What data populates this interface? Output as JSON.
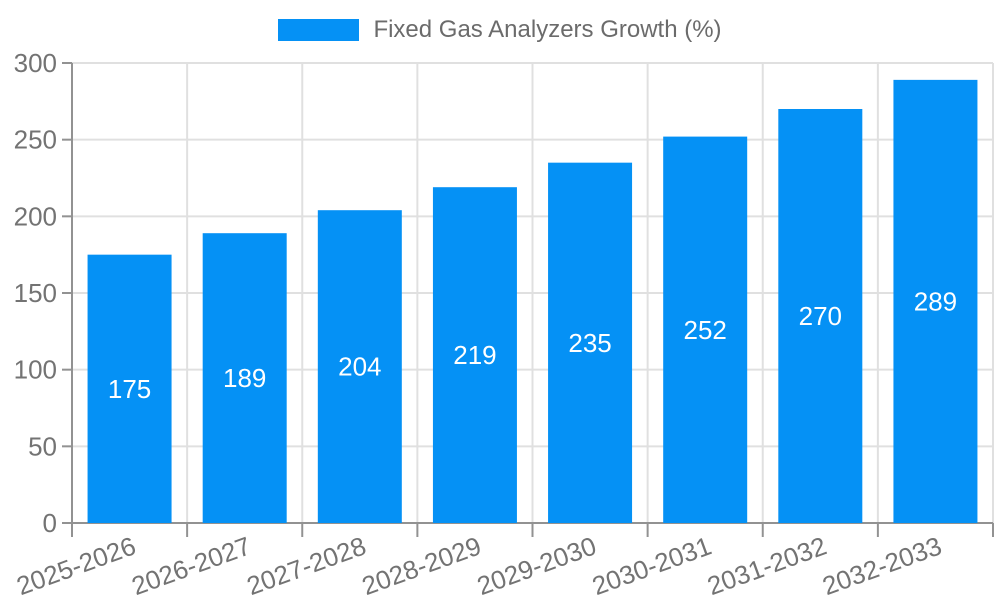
{
  "legend": {
    "label": "Fixed Gas Analyzers Growth (%)"
  },
  "chart_data": {
    "type": "bar",
    "title": "Fixed Gas Analyzers Growth (%)",
    "categories": [
      "2025-2026",
      "2026-2027",
      "2027-2028",
      "2028-2029",
      "2029-2030",
      "2030-2031",
      "2031-2032",
      "2032-2033"
    ],
    "values": [
      175,
      189,
      204,
      219,
      235,
      252,
      270,
      289
    ],
    "series": [
      {
        "name": "Fixed Gas Analyzers Growth (%)",
        "values": [
          175,
          189,
          204,
          219,
          235,
          252,
          270,
          289
        ]
      }
    ],
    "xlabel": "",
    "ylabel": "",
    "ylim": [
      0,
      300
    ],
    "yticks": [
      0,
      50,
      100,
      150,
      200,
      250,
      300
    ],
    "grid": true,
    "legend_position": "top-center",
    "value_labels": "inside-center",
    "x_label_rotation_deg": -20,
    "colors": {
      "bar": "#0591f5",
      "grid": "#e0e0e0",
      "axis": "#929292",
      "tick_text": "#737373",
      "value_text": "#ffffff"
    }
  }
}
